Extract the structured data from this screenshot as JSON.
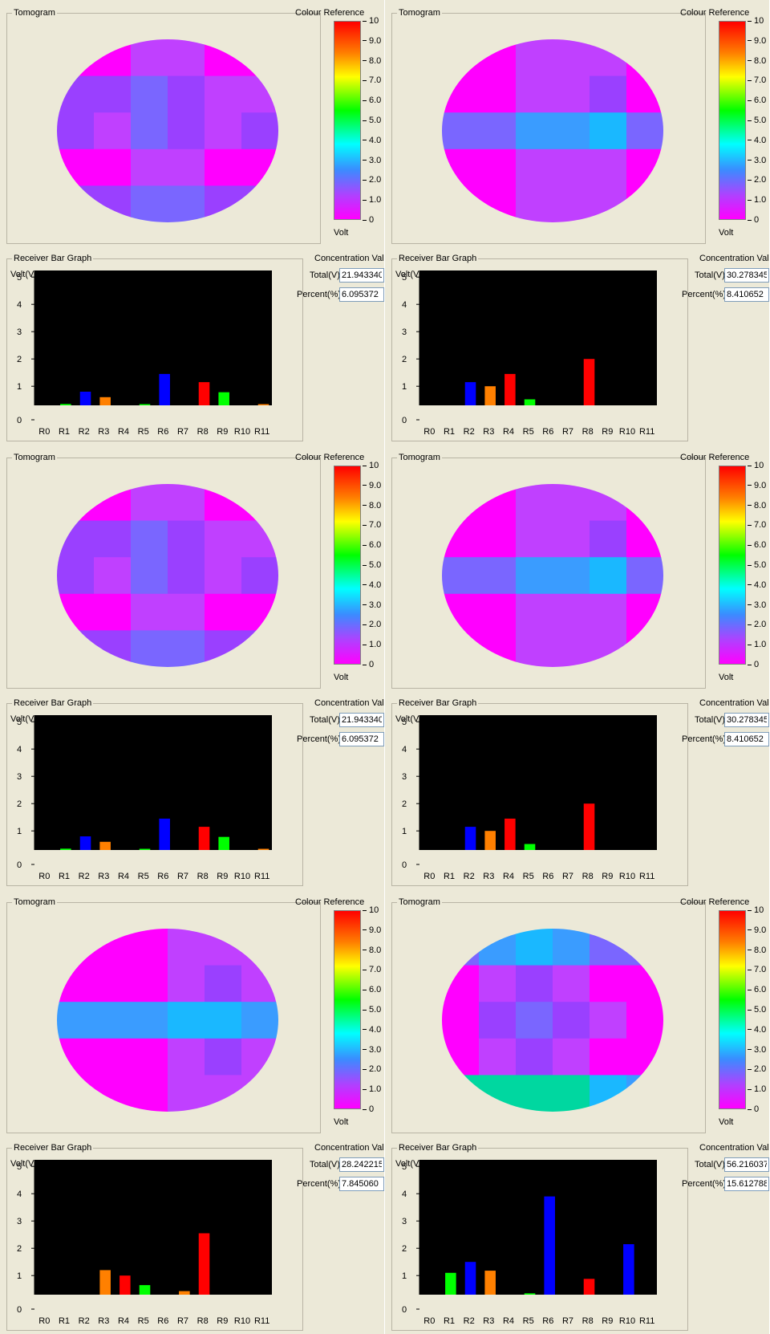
{
  "labels": {
    "tomogram": "Tomogram",
    "colour_reference": "Colour Reference",
    "volt": "Volt",
    "receiver_bar_graph": "Receiver Bar Graph",
    "concentration_values": "Concentration Values",
    "total": "Total(V)",
    "percent": "Percent(%)",
    "y_axis_label": "Volt(V)"
  },
  "colour_scale_ticks": [
    "10",
    "9.0",
    "8.0",
    "7.0",
    "6.0",
    "5.0",
    "4.0",
    "3.0",
    "2.0",
    "1.0",
    "0"
  ],
  "colors": {
    "panel_bg": "#ece9d8",
    "magenta": "#ff00ff",
    "violet": "#c040ff",
    "purple": "#9a40ff",
    "indigo": "#7a66ff",
    "skyblue": "#3a9cff",
    "cyan": "#1ab8ff",
    "teal": "#00d7a0",
    "bar_blue": "#0000ff",
    "bar_orange": "#ff8000",
    "bar_red": "#ff0000",
    "bar_green": "#00ff00"
  },
  "panels": [
    {
      "total": "21.943340",
      "percent": "6.095372",
      "tomogram": [
        [
          "m",
          "m",
          "v",
          "v",
          "m",
          "m"
        ],
        [
          "p",
          "p",
          "i",
          "p",
          "v",
          "v"
        ],
        [
          "p",
          "v",
          "i",
          "p",
          "v",
          "p"
        ],
        [
          "m",
          "m",
          "v",
          "v",
          "m",
          "m"
        ],
        [
          "p",
          "p",
          "i",
          "i",
          "p",
          "p"
        ]
      ],
      "chart_data": {
        "type": "bar",
        "categories": [
          "R0",
          "R1",
          "R2",
          "R3",
          "R4",
          "R5",
          "R6",
          "R7",
          "R8",
          "R9",
          "R10",
          "R11"
        ],
        "values": [
          0.0,
          0.05,
          0.5,
          0.3,
          0.0,
          0.02,
          1.15,
          0.0,
          0.85,
          0.48,
          0.0,
          0.04
        ],
        "colors": [
          "bar_blue",
          "bar_green",
          "bar_blue",
          "bar_orange",
          "bar_blue",
          "bar_green",
          "bar_blue",
          "bar_blue",
          "bar_red",
          "bar_green",
          "bar_blue",
          "bar_orange"
        ],
        "ylabel": "Volt(V)",
        "ylim": [
          0,
          5
        ],
        "yticks": [
          "0",
          "1",
          "2",
          "3",
          "4",
          "5"
        ]
      }
    },
    {
      "total": "30.278345",
      "percent": "8.410652",
      "tomogram": [
        [
          "m",
          "m",
          "v",
          "v",
          "v",
          "m"
        ],
        [
          "m",
          "m",
          "v",
          "v",
          "p",
          "m"
        ],
        [
          "i",
          "i",
          "s",
          "s",
          "c",
          "i"
        ],
        [
          "m",
          "m",
          "v",
          "v",
          "v",
          "m"
        ],
        [
          "m",
          "m",
          "v",
          "v",
          "v",
          "m"
        ]
      ],
      "chart_data": {
        "type": "bar",
        "categories": [
          "R0",
          "R1",
          "R2",
          "R3",
          "R4",
          "R5",
          "R6",
          "R7",
          "R8",
          "R9",
          "R10",
          "R11"
        ],
        "values": [
          0.0,
          0.0,
          0.85,
          0.7,
          1.15,
          0.22,
          0.0,
          0.0,
          1.7,
          0.0,
          0.0,
          0.0
        ],
        "colors": [
          "bar_blue",
          "bar_blue",
          "bar_blue",
          "bar_orange",
          "bar_red",
          "bar_green",
          "bar_blue",
          "bar_blue",
          "bar_red",
          "bar_blue",
          "bar_blue",
          "bar_blue"
        ],
        "ylabel": "Volt(V)",
        "ylim": [
          0,
          5
        ],
        "yticks": [
          "0",
          "1",
          "2",
          "3",
          "4",
          "5"
        ]
      }
    },
    {
      "total": "21.943340",
      "percent": "6.095372",
      "tomogram": [
        [
          "m",
          "m",
          "v",
          "v",
          "m",
          "m"
        ],
        [
          "p",
          "p",
          "i",
          "p",
          "v",
          "v"
        ],
        [
          "p",
          "v",
          "i",
          "p",
          "v",
          "p"
        ],
        [
          "m",
          "m",
          "v",
          "v",
          "m",
          "m"
        ],
        [
          "p",
          "p",
          "i",
          "i",
          "p",
          "p"
        ]
      ],
      "chart_data": {
        "type": "bar",
        "categories": [
          "R0",
          "R1",
          "R2",
          "R3",
          "R4",
          "R5",
          "R6",
          "R7",
          "R8",
          "R9",
          "R10",
          "R11"
        ],
        "values": [
          0.0,
          0.05,
          0.5,
          0.3,
          0.0,
          0.02,
          1.15,
          0.0,
          0.85,
          0.48,
          0.0,
          0.04
        ],
        "colors": [
          "bar_blue",
          "bar_green",
          "bar_blue",
          "bar_orange",
          "bar_blue",
          "bar_green",
          "bar_blue",
          "bar_blue",
          "bar_red",
          "bar_green",
          "bar_blue",
          "bar_orange"
        ],
        "ylabel": "Volt(V)",
        "ylim": [
          0,
          5
        ],
        "yticks": [
          "0",
          "1",
          "2",
          "3",
          "4",
          "5"
        ]
      }
    },
    {
      "total": "30.278345",
      "percent": "8.410652",
      "tomogram": [
        [
          "m",
          "m",
          "v",
          "v",
          "v",
          "m"
        ],
        [
          "m",
          "m",
          "v",
          "v",
          "p",
          "m"
        ],
        [
          "i",
          "i",
          "s",
          "s",
          "c",
          "i"
        ],
        [
          "m",
          "m",
          "v",
          "v",
          "v",
          "m"
        ],
        [
          "m",
          "m",
          "v",
          "v",
          "v",
          "m"
        ]
      ],
      "chart_data": {
        "type": "bar",
        "categories": [
          "R0",
          "R1",
          "R2",
          "R3",
          "R4",
          "R5",
          "R6",
          "R7",
          "R8",
          "R9",
          "R10",
          "R11"
        ],
        "values": [
          0.0,
          0.0,
          0.85,
          0.7,
          1.15,
          0.22,
          0.0,
          0.0,
          1.7,
          0.0,
          0.0,
          0.0
        ],
        "colors": [
          "bar_blue",
          "bar_blue",
          "bar_blue",
          "bar_orange",
          "bar_red",
          "bar_green",
          "bar_blue",
          "bar_blue",
          "bar_red",
          "bar_blue",
          "bar_blue",
          "bar_blue"
        ],
        "ylabel": "Volt(V)",
        "ylim": [
          0,
          5
        ],
        "yticks": [
          "0",
          "1",
          "2",
          "3",
          "4",
          "5"
        ]
      }
    },
    {
      "total": "28.242215",
      "percent": "7.845060",
      "tomogram": [
        [
          "m",
          "m",
          "m",
          "v",
          "v",
          "v"
        ],
        [
          "m",
          "m",
          "m",
          "v",
          "p",
          "v"
        ],
        [
          "s",
          "s",
          "s",
          "c",
          "c",
          "s"
        ],
        [
          "m",
          "m",
          "m",
          "v",
          "p",
          "v"
        ],
        [
          "m",
          "m",
          "m",
          "v",
          "v",
          "v"
        ]
      ],
      "chart_data": {
        "type": "bar",
        "categories": [
          "R0",
          "R1",
          "R2",
          "R3",
          "R4",
          "R5",
          "R6",
          "R7",
          "R8",
          "R9",
          "R10",
          "R11"
        ],
        "values": [
          0.0,
          0.0,
          0.0,
          0.9,
          0.7,
          0.35,
          0.0,
          0.13,
          2.25,
          0.0,
          0.0,
          0.0
        ],
        "colors": [
          "bar_blue",
          "bar_blue",
          "bar_blue",
          "bar_orange",
          "bar_red",
          "bar_green",
          "bar_blue",
          "bar_orange",
          "bar_red",
          "bar_blue",
          "bar_blue",
          "bar_blue"
        ],
        "ylabel": "Volt(V)",
        "ylim": [
          0,
          5
        ],
        "yticks": [
          "0",
          "1",
          "2",
          "3",
          "4",
          "5"
        ]
      }
    },
    {
      "total": "56.216037",
      "percent": "15.612788",
      "tomogram": [
        [
          "i",
          "s",
          "c",
          "s",
          "i",
          "i"
        ],
        [
          "m",
          "v",
          "p",
          "v",
          "m",
          "m"
        ],
        [
          "m",
          "p",
          "i",
          "p",
          "v",
          "m"
        ],
        [
          "m",
          "v",
          "p",
          "v",
          "m",
          "m"
        ],
        [
          "t",
          "t",
          "t",
          "t",
          "c",
          "s"
        ]
      ],
      "chart_data": {
        "type": "bar",
        "categories": [
          "R0",
          "R1",
          "R2",
          "R3",
          "R4",
          "R5",
          "R6",
          "R7",
          "R8",
          "R9",
          "R10",
          "R11"
        ],
        "values": [
          0.0,
          0.8,
          1.2,
          0.88,
          0.0,
          0.05,
          3.6,
          0.0,
          0.58,
          0.0,
          1.85,
          0.0
        ],
        "colors": [
          "bar_blue",
          "bar_green",
          "bar_blue",
          "bar_orange",
          "bar_blue",
          "bar_green",
          "bar_blue",
          "bar_blue",
          "bar_red",
          "bar_blue",
          "bar_blue",
          "bar_blue"
        ],
        "ylabel": "Volt(V)",
        "ylim": [
          0,
          5
        ],
        "yticks": [
          "0",
          "1",
          "2",
          "3",
          "4",
          "5"
        ]
      }
    }
  ]
}
